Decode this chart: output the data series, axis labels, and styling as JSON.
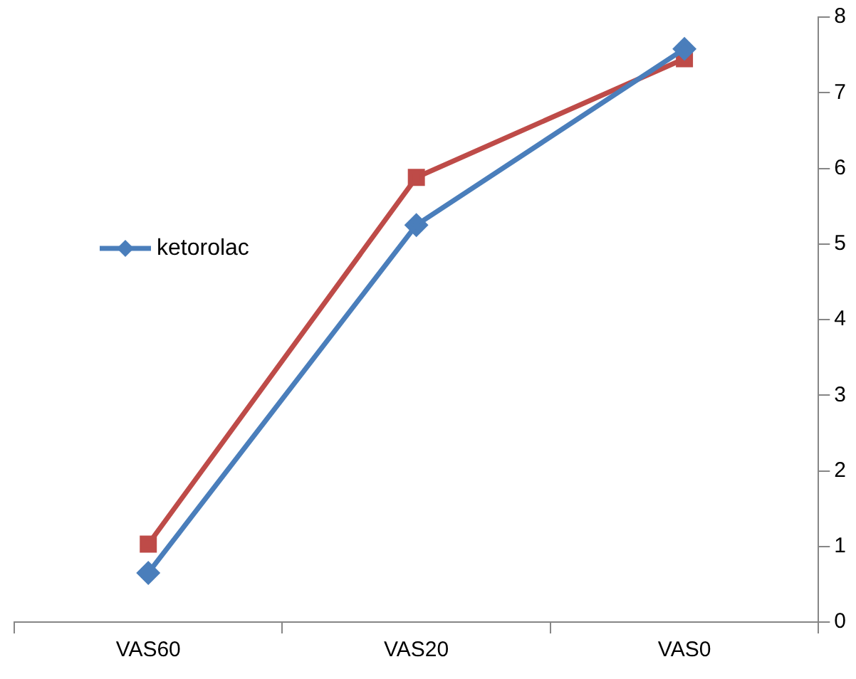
{
  "chart_data": {
    "type": "line",
    "categories": [
      "VAS60",
      "VAS20",
      "VAS0"
    ],
    "series": [
      {
        "name": "ketorolac",
        "color": "#4a7ebb",
        "marker": "diamond",
        "values": [
          0.65,
          5.25,
          7.58
        ]
      },
      {
        "color": "#be4b48",
        "marker": "square",
        "values": [
          1.03,
          5.88,
          7.45
        ]
      }
    ],
    "ylim": [
      0,
      8
    ],
    "yticks": [
      0,
      1,
      2,
      3,
      4,
      5,
      6,
      7,
      8
    ],
    "grid": false,
    "legend": "left"
  }
}
